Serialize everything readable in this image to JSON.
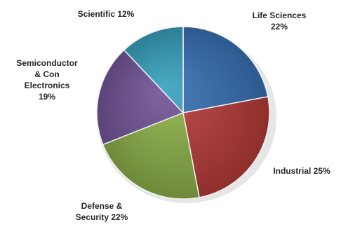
{
  "chart_data": {
    "type": "pie",
    "title": "",
    "start_angle_deg": 0,
    "direction": "clockwise",
    "slices": [
      {
        "name": "Life Sciences",
        "value": 22,
        "label_lines": [
          "Life Sciences",
          "22%"
        ],
        "color": "#4a7ebb",
        "edge_color": "#2c5a8f"
      },
      {
        "name": "Industrial",
        "value": 25,
        "label_lines": [
          "Industrial 25%"
        ],
        "color": "#c0504d",
        "edge_color": "#8f2f2c"
      },
      {
        "name": "Defense & Security",
        "value": 22,
        "label_lines": [
          "Defense &",
          "Security 22%"
        ],
        "color": "#9bbb59",
        "edge_color": "#6e8a3a"
      },
      {
        "name": "Semiconductor & Con Electronics",
        "value": 19,
        "label_lines": [
          "Semiconductor",
          "& Con",
          "Electronics",
          "19%"
        ],
        "color": "#8064a2",
        "edge_color": "#5a4478"
      },
      {
        "name": "Scientific",
        "value": 12,
        "label_lines": [
          "Scientific 12%"
        ],
        "color": "#4bacc6",
        "edge_color": "#2c7f96"
      }
    ]
  }
}
